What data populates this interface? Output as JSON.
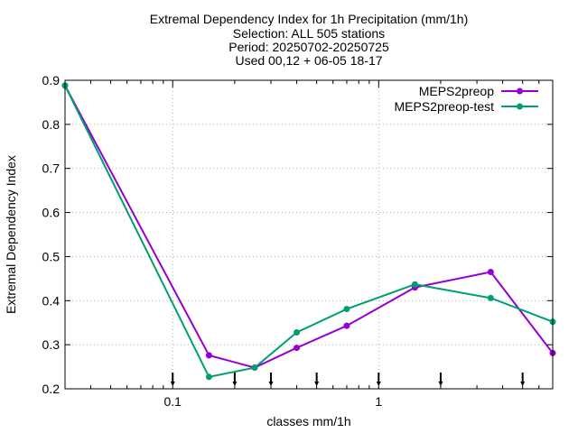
{
  "chart_data": {
    "type": "line",
    "title": "Extremal Dependency Index  for 1h Precipitation (mm/1h)",
    "subtitle_lines": [
      "Selection: ALL    505 stations",
      "Period: 20250702-20250725",
      "Used 00,12 + 06-05 18-17"
    ],
    "xlabel": "classes mm/1h",
    "ylabel": "Extremal Dependency Index",
    "xscale": "log",
    "xlim": [
      0.03,
      7
    ],
    "ylim": [
      0.2,
      0.9
    ],
    "xticks": [
      {
        "value": 0.1,
        "label": "0.1"
      },
      {
        "value": 1,
        "label": "1"
      }
    ],
    "yticks": [
      {
        "value": 0.2,
        "label": "0.2"
      },
      {
        "value": 0.3,
        "label": "0.3"
      },
      {
        "value": 0.4,
        "label": "0.4"
      },
      {
        "value": 0.5,
        "label": "0.5"
      },
      {
        "value": 0.6,
        "label": "0.6"
      },
      {
        "value": 0.7,
        "label": "0.7"
      },
      {
        "value": 0.8,
        "label": "0.8"
      },
      {
        "value": 0.9,
        "label": "0.9"
      }
    ],
    "grid": true,
    "legend_position": "top-right",
    "class_markers": [
      0.1,
      0.2,
      0.3,
      0.5,
      1,
      2,
      5
    ],
    "series": [
      {
        "name": "MEPS2preop",
        "color": "#9400d3",
        "x": [
          0.03,
          0.15,
          0.25,
          0.4,
          0.7,
          1.5,
          3.5,
          7
        ],
        "y": [
          0.888,
          0.276,
          0.248,
          0.293,
          0.343,
          0.43,
          0.465,
          0.281
        ]
      },
      {
        "name": "MEPS2preop-test",
        "color": "#009e73",
        "x": [
          0.03,
          0.15,
          0.25,
          0.4,
          0.7,
          1.5,
          3.5,
          7
        ],
        "y": [
          0.888,
          0.227,
          0.248,
          0.328,
          0.381,
          0.437,
          0.406,
          0.352
        ]
      }
    ]
  }
}
